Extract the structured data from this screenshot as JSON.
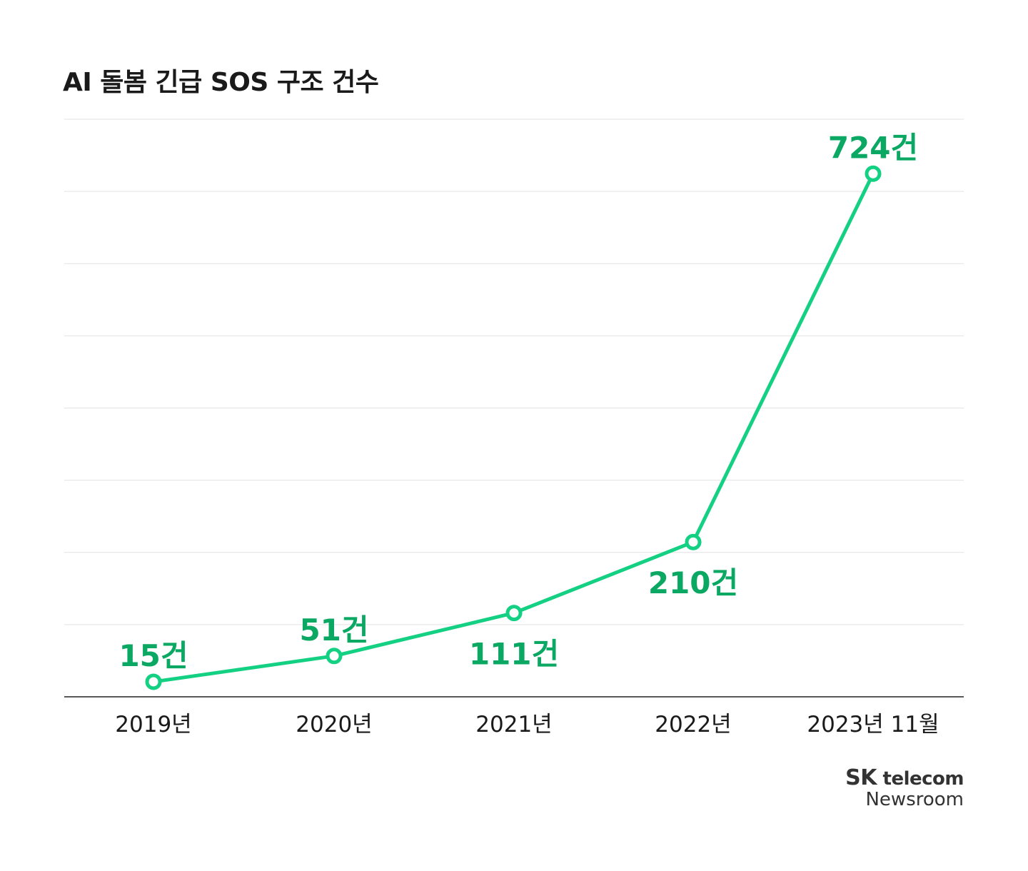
{
  "title": "AI 돌봄 긴급 SOS 구조 건수",
  "colors": {
    "line": "#14d083",
    "label": "#0ba864",
    "grid": "#e2e2e2",
    "axis": "#222222"
  },
  "chart_data": {
    "type": "line",
    "title": "AI 돌봄 긴급 SOS 구조 건수",
    "categories": [
      "2019년",
      "2020년",
      "2021년",
      "2022년",
      "2023년 11월"
    ],
    "values": [
      15,
      51,
      111,
      210,
      724
    ],
    "data_labels": [
      "15건",
      "51건",
      "111건",
      "210건",
      "724건"
    ],
    "ylim": [
      0,
      800
    ],
    "grid": true,
    "y_tick_labels_shown": false,
    "marker": "hollow-circle"
  },
  "logo": {
    "brand": "SK",
    "brand2": "telecom",
    "line2": "Newsroom"
  }
}
